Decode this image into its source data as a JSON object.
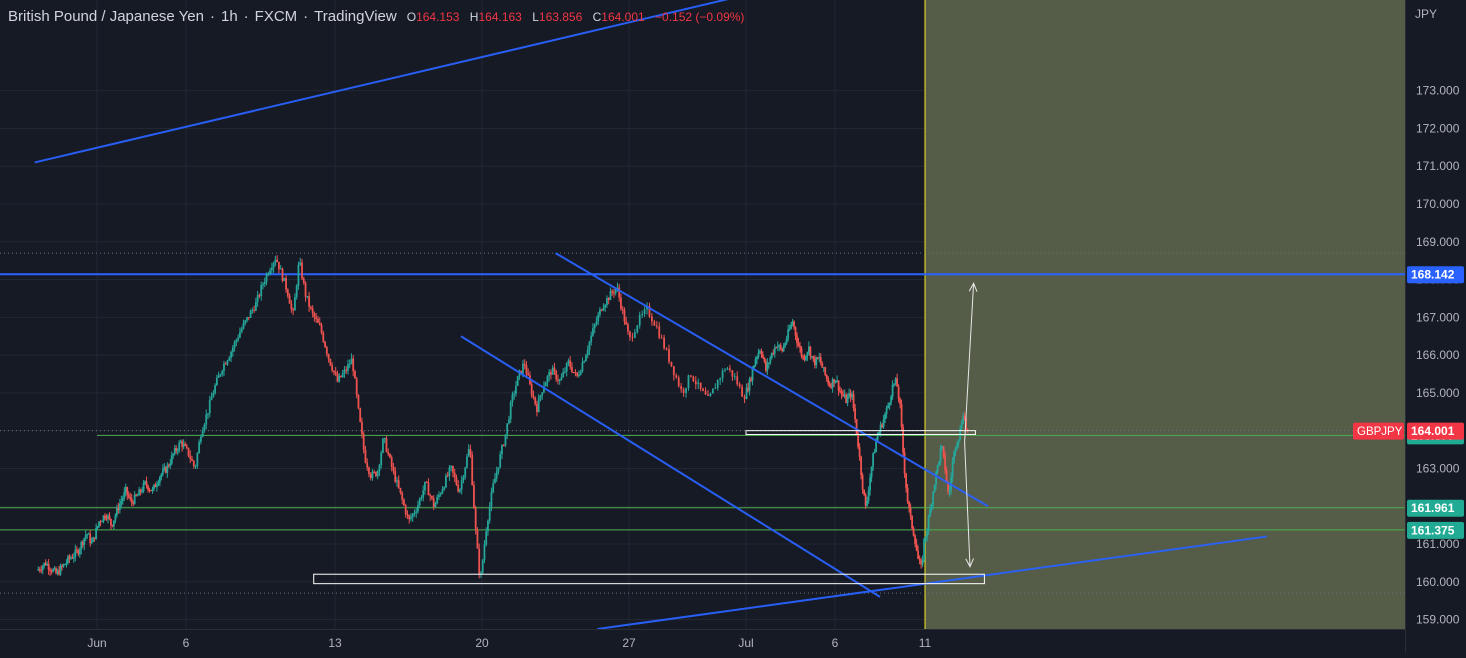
{
  "header": {
    "symbol_name": "British Pound / Japanese Yen",
    "interval": "1h",
    "broker": "FXCM",
    "platform": "TradingView",
    "ohlc": [
      {
        "key": "O",
        "value": "164.153"
      },
      {
        "key": "H",
        "value": "164.163"
      },
      {
        "key": "L",
        "value": "163.856"
      },
      {
        "key": "C",
        "value": "164.001"
      }
    ],
    "change": "−0.152 (−0.09%)"
  },
  "colors": {
    "background": "#161a25",
    "grid": "#232733",
    "axis_text": "#b2b5be",
    "up": "#26a69a",
    "down": "#ef5350",
    "trendline": "#2962ff",
    "level_line": "#4caf50",
    "projection_zone": "#5b624a",
    "cursor": "#f5e61d",
    "price_label_red": "#f23645",
    "price_label_green": "#22ab94",
    "price_label_blue": "#2962ff"
  },
  "chart_data": {
    "type": "candlestick",
    "y_axis": {
      "unit": "JPY",
      "range": [
        158.75,
        175.4
      ],
      "ticks": [
        "159.000",
        "160.000",
        "161.000",
        "162.000",
        "163.000",
        "164.000",
        "165.000",
        "166.000",
        "167.000",
        "168.000",
        "169.000",
        "170.000",
        "171.000",
        "172.000",
        "173.000"
      ]
    },
    "x_axis": {
      "ticks": [
        {
          "label": "Jun",
          "day": 1
        },
        {
          "label": "6",
          "day": 6
        },
        {
          "label": "13",
          "day": 13
        },
        {
          "label": "20",
          "day": 20
        },
        {
          "label": "27",
          "day": 27
        },
        {
          "label": "Jul",
          "day": 31
        },
        {
          "label": "6",
          "day": 36
        },
        {
          "label": "11",
          "day": 41
        }
      ],
      "last_bar_day": 41.5,
      "cursor_day": 41
    },
    "price_path": [
      [
        -2.3,
        160.3
      ],
      [
        -1.8,
        160.5
      ],
      [
        -1.2,
        160.2
      ],
      [
        -0.5,
        160.6
      ],
      [
        0.0,
        160.8
      ],
      [
        0.5,
        161.3
      ],
      [
        0.8,
        161.0
      ],
      [
        1.2,
        161.6
      ],
      [
        1.6,
        161.8
      ],
      [
        1.9,
        161.5
      ],
      [
        2.3,
        162.0
      ],
      [
        2.7,
        162.4
      ],
      [
        3.0,
        162.1
      ],
      [
        3.4,
        162.3
      ],
      [
        3.8,
        162.6
      ],
      [
        4.2,
        162.4
      ],
      [
        4.6,
        162.8
      ],
      [
        5.0,
        163.0
      ],
      [
        5.4,
        163.4
      ],
      [
        5.8,
        163.7
      ],
      [
        6.2,
        163.4
      ],
      [
        6.5,
        163.0
      ],
      [
        6.8,
        164.0
      ],
      [
        7.1,
        164.5
      ],
      [
        7.4,
        165.1
      ],
      [
        7.8,
        165.7
      ],
      [
        8.2,
        166.1
      ],
      [
        8.6,
        166.6
      ],
      [
        9.0,
        167.0
      ],
      [
        9.4,
        167.4
      ],
      [
        9.7,
        167.9
      ],
      [
        10.0,
        168.3
      ],
      [
        10.3,
        168.6
      ],
      [
        10.6,
        168.1
      ],
      [
        10.9,
        167.6
      ],
      [
        11.1,
        167.0
      ],
      [
        11.4,
        168.5
      ],
      [
        11.7,
        167.6
      ],
      [
        12.0,
        167.1
      ],
      [
        12.4,
        166.7
      ],
      [
        12.8,
        165.9
      ],
      [
        13.2,
        165.3
      ],
      [
        13.6,
        165.6
      ],
      [
        13.9,
        165.9
      ],
      [
        14.2,
        164.5
      ],
      [
        14.5,
        163.3
      ],
      [
        14.8,
        162.8
      ],
      [
        15.1,
        162.9
      ],
      [
        15.4,
        163.8
      ],
      [
        15.8,
        163.0
      ],
      [
        16.2,
        162.3
      ],
      [
        16.6,
        161.6
      ],
      [
        17.0,
        162.0
      ],
      [
        17.4,
        162.6
      ],
      [
        17.8,
        162.0
      ],
      [
        18.2,
        162.5
      ],
      [
        18.6,
        163.0
      ],
      [
        19.0,
        162.4
      ],
      [
        19.5,
        163.6
      ],
      [
        19.8,
        161.2
      ],
      [
        20.0,
        160.0
      ],
      [
        20.3,
        161.5
      ],
      [
        20.6,
        162.5
      ],
      [
        20.9,
        163.2
      ],
      [
        21.2,
        163.9
      ],
      [
        21.5,
        164.8
      ],
      [
        21.8,
        165.4
      ],
      [
        22.1,
        165.8
      ],
      [
        22.4,
        165.1
      ],
      [
        22.7,
        164.6
      ],
      [
        23.0,
        165.2
      ],
      [
        23.4,
        165.6
      ],
      [
        23.8,
        165.3
      ],
      [
        24.2,
        165.8
      ],
      [
        24.6,
        165.4
      ],
      [
        25.0,
        166.0
      ],
      [
        25.4,
        166.7
      ],
      [
        25.8,
        167.3
      ],
      [
        26.2,
        167.6
      ],
      [
        26.5,
        167.8
      ],
      [
        26.8,
        167.1
      ],
      [
        27.1,
        166.4
      ],
      [
        27.4,
        166.9
      ],
      [
        27.7,
        167.2
      ],
      [
        28.0,
        166.8
      ],
      [
        28.3,
        166.2
      ],
      [
        28.6,
        165.6
      ],
      [
        28.9,
        165.0
      ],
      [
        29.2,
        165.5
      ],
      [
        29.5,
        165.1
      ],
      [
        29.8,
        164.8
      ],
      [
        30.1,
        165.3
      ],
      [
        30.4,
        165.7
      ],
      [
        30.7,
        165.4
      ],
      [
        31.0,
        164.9
      ],
      [
        31.3,
        165.3
      ],
      [
        31.6,
        165.9
      ],
      [
        31.9,
        166.2
      ],
      [
        32.2,
        165.6
      ],
      [
        32.5,
        166.0
      ],
      [
        32.8,
        166.3
      ],
      [
        33.1,
        166.1
      ],
      [
        33.4,
        166.5
      ],
      [
        33.7,
        166.9
      ],
      [
        34.0,
        166.3
      ],
      [
        34.3,
        165.9
      ],
      [
        34.6,
        166.2
      ],
      [
        34.9,
        165.8
      ],
      [
        35.2,
        165.9
      ],
      [
        35.5,
        165.5
      ],
      [
        35.8,
        165.2
      ],
      [
        36.1,
        165.4
      ],
      [
        36.4,
        165.0
      ],
      [
        36.7,
        164.8
      ],
      [
        37.0,
        165.0
      ],
      [
        37.2,
        164.3
      ],
      [
        37.4,
        163.5
      ],
      [
        37.6,
        162.6
      ],
      [
        37.8,
        161.9
      ],
      [
        38.0,
        162.7
      ],
      [
        38.2,
        163.3
      ],
      [
        38.4,
        163.8
      ],
      [
        38.7,
        164.2
      ],
      [
        39.0,
        164.6
      ],
      [
        39.3,
        165.2
      ],
      [
        39.5,
        165.3
      ],
      [
        39.7,
        164.6
      ],
      [
        39.9,
        163.2
      ],
      [
        40.1,
        162.2
      ],
      [
        40.3,
        161.6
      ],
      [
        40.5,
        161.2
      ],
      [
        40.7,
        160.6
      ],
      [
        40.9,
        160.3
      ],
      [
        41.0,
        161.0
      ],
      [
        41.2,
        161.4
      ],
      [
        41.4,
        162.0
      ],
      [
        41.6,
        162.6
      ],
      [
        41.8,
        163.1
      ],
      [
        42.0,
        163.6
      ],
      [
        42.2,
        163.0
      ],
      [
        42.4,
        162.2
      ],
      [
        42.6,
        163.1
      ],
      [
        42.8,
        163.7
      ],
      [
        43.0,
        163.9
      ],
      [
        43.2,
        164.5
      ],
      [
        43.4,
        164.0
      ]
    ],
    "last_price": 164.001,
    "levels": [
      {
        "name": "resistance",
        "price": 168.142,
        "label": "168.142",
        "color": "#2962ff"
      },
      {
        "name": "current",
        "price": 163.877,
        "label": "163.877",
        "color": "#4caf50"
      },
      {
        "name": "support-1",
        "price": 161.961,
        "label": "161.961",
        "color": "#4caf50"
      },
      {
        "name": "support-2",
        "price": 161.375,
        "label": "161.375",
        "color": "#4caf50"
      }
    ],
    "dotted_levels": [
      168.7,
      164.0,
      159.7
    ],
    "last_price_label": {
      "symbol": "GBPJPY",
      "value": "164.001"
    },
    "trendlines": [
      {
        "name": "upper-ascending",
        "from": [
          -2.5,
          171.1
        ],
        "to": [
          30.8,
          175.5
        ]
      },
      {
        "name": "channel-upper",
        "from": [
          23.5,
          168.7
        ],
        "to": [
          44.5,
          162.0
        ]
      },
      {
        "name": "channel-lower",
        "from": [
          19.0,
          166.5
        ],
        "to": [
          38.5,
          159.6
        ]
      },
      {
        "name": "lower-ascending",
        "from": [
          25.5,
          158.75
        ],
        "to": [
          60.0,
          161.2
        ]
      }
    ],
    "rectangles": [
      {
        "name": "demand-zone",
        "from": [
          12.0,
          160.2
        ],
        "to": [
          44.3,
          159.95
        ]
      },
      {
        "name": "breakout-zone",
        "from": [
          31.0,
          164.0
        ],
        "to": [
          43.8,
          163.9
        ]
      }
    ],
    "arrows": [
      {
        "name": "bullish-target-arrow",
        "from": [
          43.2,
          163.7
        ],
        "to": [
          43.7,
          167.9
        ]
      },
      {
        "name": "bearish-target-arrow",
        "from": [
          43.2,
          163.7
        ],
        "to": [
          43.5,
          160.4
        ]
      }
    ]
  }
}
